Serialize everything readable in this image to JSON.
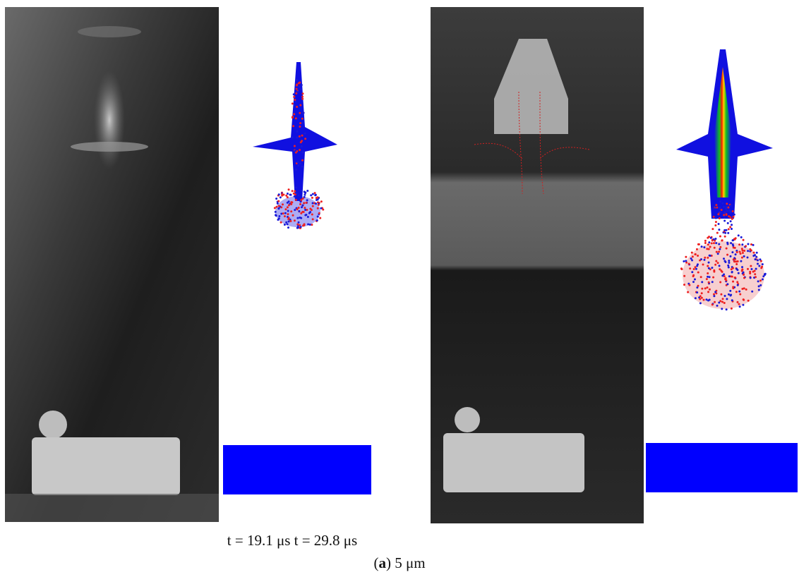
{
  "figure": {
    "time_labels": [
      "t = 19.1 μs",
      "t = 29.8 μs"
    ],
    "caption": [
      "(",
      "a",
      ") 5 μm"
    ]
  }
}
